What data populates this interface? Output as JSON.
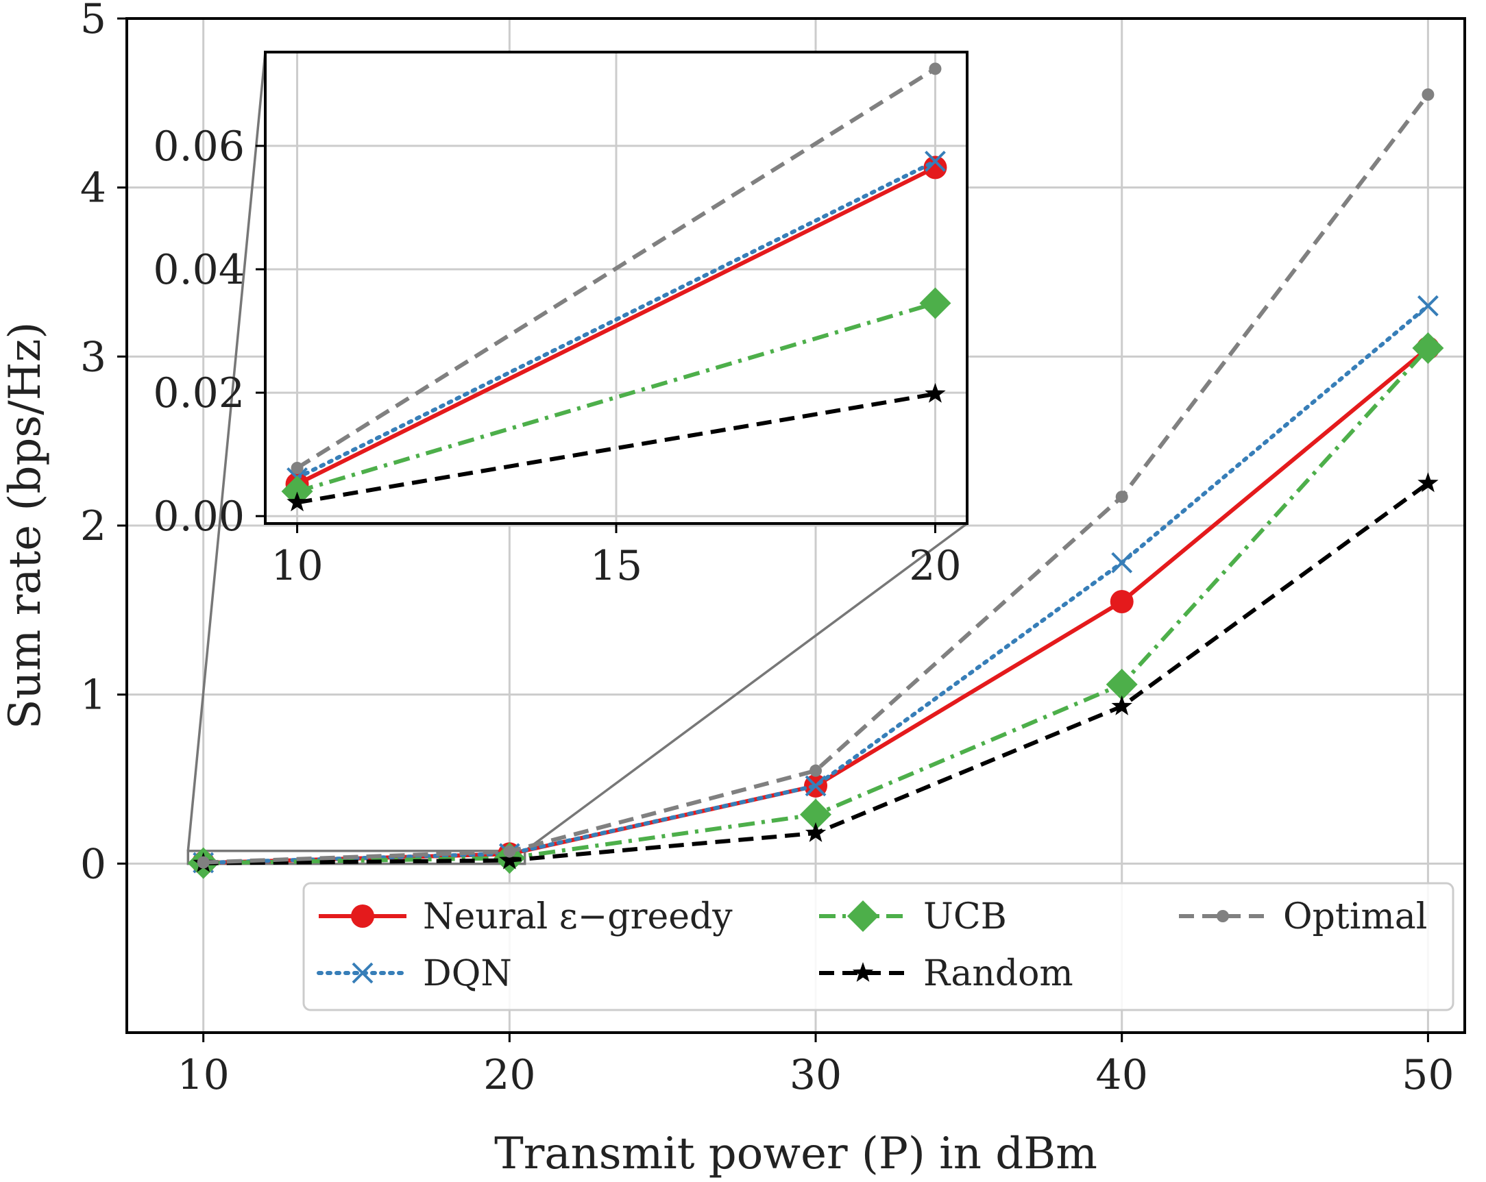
{
  "chart_data": [
    {
      "type": "line",
      "xlabel": "Transmit power (P) in dBm",
      "ylabel": "Sum rate (bps/Hz)",
      "xlim": [
        7.5,
        51.2
      ],
      "ylim": [
        -1.0,
        5.0
      ],
      "xticks": [
        10,
        20,
        30,
        40,
        50
      ],
      "yticks": [
        0,
        1,
        2,
        3,
        4,
        5
      ],
      "grid": true,
      "legend_location": "lower-right",
      "legend_columns": 3,
      "x": [
        10,
        20,
        30,
        40,
        50
      ],
      "series": [
        {
          "name": "Neural ε−greedy",
          "values": [
            0.004,
            0.057,
            0.46,
            1.55,
            3.05
          ],
          "color": "#e41a1c",
          "linestyle": "solid",
          "marker": "circle"
        },
        {
          "name": "DQN",
          "values": [
            0.005,
            0.059,
            0.46,
            1.78,
            3.3
          ],
          "color": "#377eb8",
          "linestyle": "dotted",
          "marker": "x"
        },
        {
          "name": "UCB",
          "values": [
            0.003,
            0.033,
            0.29,
            1.06,
            3.05
          ],
          "color": "#4daf4a",
          "linestyle": "dashdot",
          "marker": "diamond"
        },
        {
          "name": "Random",
          "values": [
            0.002,
            0.019,
            0.18,
            0.93,
            2.25
          ],
          "color": "#000000",
          "linestyle": "dashed",
          "marker": "star"
        },
        {
          "name": "Optimal",
          "values": [
            0.007,
            0.072,
            0.55,
            2.17,
            4.55
          ],
          "color": "#808080",
          "linestyle": "dashed",
          "marker": "point"
        }
      ]
    },
    {
      "type": "line",
      "role": "inset zoom",
      "xlim": [
        9.5,
        20.5
      ],
      "ylim": [
        -0.0012,
        0.0752
      ],
      "xticks": [
        10,
        15,
        20
      ],
      "yticks": [
        0.0,
        0.02,
        0.04,
        0.06
      ],
      "ytick_labels": [
        "0.00",
        "0.02",
        "0.04",
        "0.06"
      ],
      "grid": true,
      "x": [
        10,
        20
      ],
      "zoom_region": {
        "x": [
          9.5,
          20.5
        ],
        "y": [
          -0.0012,
          0.0752
        ]
      },
      "series": [
        {
          "name": "Neural ε−greedy",
          "values": [
            0.0052,
            0.0565
          ]
        },
        {
          "name": "DQN",
          "values": [
            0.0062,
            0.0575
          ]
        },
        {
          "name": "UCB",
          "values": [
            0.004,
            0.0345
          ]
        },
        {
          "name": "Random",
          "values": [
            0.0022,
            0.0198
          ]
        },
        {
          "name": "Optimal",
          "values": [
            0.0078,
            0.0725
          ]
        }
      ]
    }
  ],
  "legend": {
    "entries": [
      "Neural ε−greedy",
      "UCB",
      "Optimal",
      "DQN",
      "Random"
    ]
  }
}
